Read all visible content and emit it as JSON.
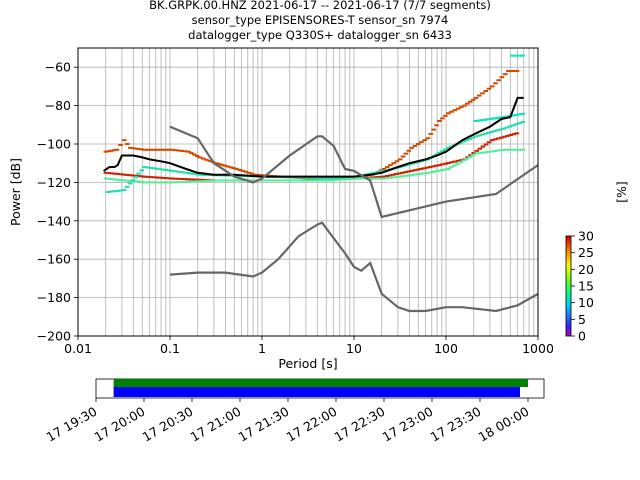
{
  "title": {
    "line1": "BK.GRPK.00.HNZ   2021-06-17 -- 2021-06-17  (7/7 segments)",
    "line2": "sensor_type EPISENSORES-T sensor_sn 7974",
    "line3": "datalogger_type Q330S+ datalogger_sn 6433"
  },
  "chart_data": [
    {
      "type": "heatmap",
      "title": "BK.GRPK.00.HNZ   2021-06-17 -- 2021-06-17  (7/7 segments)",
      "xlabel": "Period [s]",
      "ylabel": "Power [dB]",
      "xscale": "log",
      "xlim": [
        0.01,
        1000
      ],
      "ylim": [
        -200,
        -50
      ],
      "xticks": [
        0.01,
        0.1,
        1,
        10,
        100,
        1000
      ],
      "xtick_labels": [
        "0.01",
        "0.1",
        "1",
        "10",
        "100",
        "1000"
      ],
      "yticks": [
        -200,
        -180,
        -160,
        -140,
        -120,
        -100,
        -80,
        -60
      ],
      "ytick_labels": [
        "−200",
        "−180",
        "−160",
        "−140",
        "−120",
        "−100",
        "−80",
        "−60"
      ],
      "grid": true,
      "colorbar": {
        "label": "[%]",
        "range": [
          0,
          30
        ],
        "ticks": [
          0,
          5,
          10,
          15,
          20,
          25,
          30
        ],
        "tick_labels": [
          "0",
          "5",
          "10",
          "15",
          "20",
          "25",
          "30"
        ]
      },
      "psd_tracks": [
        {
          "color": "#d24a00",
          "points": [
            [
              0.019,
              -104
            ],
            [
              0.025,
              -103
            ],
            [
              0.03,
              -98
            ],
            [
              0.035,
              -102
            ],
            [
              0.05,
              -103
            ],
            [
              0.1,
              -103
            ],
            [
              0.15,
              -104
            ],
            [
              0.2,
              -107
            ],
            [
              0.3,
              -110
            ],
            [
              0.5,
              -113
            ],
            [
              0.8,
              -116
            ],
            [
              1.5,
              -117
            ],
            [
              3,
              -118
            ],
            [
              6,
              -118
            ],
            [
              10,
              -117
            ],
            [
              15,
              -116
            ],
            [
              20,
              -113
            ],
            [
              30,
              -108
            ],
            [
              40,
              -102
            ],
            [
              60,
              -97
            ],
            [
              80,
              -88
            ],
            [
              100,
              -84
            ],
            [
              150,
              -80
            ],
            [
              200,
              -76
            ],
            [
              300,
              -70
            ],
            [
              450,
              -62
            ],
            [
              600,
              -62
            ]
          ]
        },
        {
          "color": "#cc2200",
          "points": [
            [
              0.019,
              -115
            ],
            [
              0.05,
              -117
            ],
            [
              0.1,
              -118
            ],
            [
              0.3,
              -119
            ],
            [
              1,
              -119
            ],
            [
              3,
              -119
            ],
            [
              10,
              -118
            ],
            [
              20,
              -117
            ],
            [
              40,
              -114
            ],
            [
              80,
              -111
            ],
            [
              150,
              -108
            ],
            [
              300,
              -98
            ],
            [
              600,
              -94
            ]
          ]
        },
        {
          "color": "#55ee99",
          "points": [
            [
              0.019,
              -118
            ],
            [
              0.05,
              -120
            ],
            [
              0.1,
              -120
            ],
            [
              0.3,
              -119
            ],
            [
              1,
              -119
            ],
            [
              5,
              -119
            ],
            [
              10,
              -118
            ],
            [
              20,
              -118
            ],
            [
              30,
              -117
            ],
            [
              60,
              -115
            ],
            [
              100,
              -113
            ],
            [
              200,
              -105
            ],
            [
              400,
              -103
            ],
            [
              700,
              -103
            ]
          ]
        },
        {
          "color": "#22ddaa",
          "points": [
            [
              0.02,
              -125
            ],
            [
              0.03,
              -124
            ],
            [
              0.05,
              -112
            ],
            [
              0.1,
              -114
            ],
            [
              0.2,
              -116
            ],
            [
              1,
              -117
            ],
            [
              5,
              -118
            ],
            [
              10,
              -117
            ],
            [
              20,
              -114
            ],
            [
              30,
              -112
            ],
            [
              60,
              -108
            ],
            [
              100,
              -102
            ],
            [
              200,
              -96
            ],
            [
              400,
              -92
            ],
            [
              700,
              -88
            ]
          ]
        },
        {
          "color": "#00e5c0",
          "points": [
            [
              200,
              -88
            ],
            [
              400,
              -86
            ],
            [
              700,
              -84
            ]
          ]
        },
        {
          "color": "#00f0b0",
          "points": [
            [
              500,
              -54
            ],
            [
              700,
              -54
            ]
          ]
        }
      ],
      "series": [
        {
          "name": "",
          "color": "#000000",
          "points": [
            [
              0.019,
              -114
            ],
            [
              0.022,
              -112
            ],
            [
              0.025,
              -112
            ],
            [
              0.027,
              -111
            ],
            [
              0.03,
              -106
            ],
            [
              0.04,
              -106
            ],
            [
              0.05,
              -107
            ],
            [
              0.06,
              -108
            ],
            [
              0.08,
              -109
            ],
            [
              0.1,
              -110
            ],
            [
              0.15,
              -113
            ],
            [
              0.2,
              -115
            ],
            [
              0.3,
              -116
            ],
            [
              0.5,
              -116
            ],
            [
              1,
              -117
            ],
            [
              2,
              -117
            ],
            [
              5,
              -117
            ],
            [
              10,
              -117
            ],
            [
              15,
              -116
            ],
            [
              20,
              -115
            ],
            [
              30,
              -112
            ],
            [
              40,
              -110
            ],
            [
              60,
              -108
            ],
            [
              80,
              -106
            ],
            [
              100,
              -104
            ],
            [
              150,
              -98
            ],
            [
              200,
              -95
            ],
            [
              300,
              -91
            ],
            [
              400,
              -87
            ],
            [
              500,
              -86
            ],
            [
              600,
              -76
            ],
            [
              700,
              -76
            ]
          ]
        },
        {
          "name": "",
          "color": "#666666",
          "points": [
            [
              0.1,
              -91
            ],
            [
              0.2,
              -97
            ],
            [
              0.3,
              -110
            ],
            [
              0.5,
              -117
            ],
            [
              0.8,
              -120
            ],
            [
              1,
              -118
            ],
            [
              2,
              -106
            ],
            [
              4,
              -96
            ],
            [
              4.5,
              -96
            ],
            [
              6,
              -101
            ],
            [
              8,
              -113
            ],
            [
              10,
              -114
            ],
            [
              15,
              -119
            ],
            [
              20,
              -138
            ],
            [
              100,
              -130
            ],
            [
              350,
              -126
            ],
            [
              1000,
              -111
            ]
          ]
        },
        {
          "name": "",
          "color": "#666666",
          "points": [
            [
              0.1,
              -168
            ],
            [
              0.2,
              -167
            ],
            [
              0.4,
              -167
            ],
            [
              0.8,
              -169
            ],
            [
              1,
              -167
            ],
            [
              1.5,
              -160
            ],
            [
              2.5,
              -148
            ],
            [
              4,
              -142
            ],
            [
              4.5,
              -141
            ],
            [
              6,
              -149
            ],
            [
              8,
              -157
            ],
            [
              10,
              -164
            ],
            [
              12,
              -166
            ],
            [
              15,
              -162
            ],
            [
              20,
              -178
            ],
            [
              30,
              -185
            ],
            [
              40,
              -187
            ],
            [
              60,
              -187
            ],
            [
              100,
              -185
            ],
            [
              150,
              -185
            ],
            [
              350,
              -187
            ],
            [
              600,
              -184
            ],
            [
              1000,
              -178
            ]
          ]
        }
      ]
    },
    {
      "type": "timeline",
      "xticks": [
        "17 19:30",
        "17 20:00",
        "17 20:30",
        "17 21:00",
        "17 21:30",
        "17 22:00",
        "17 22:30",
        "17 23:00",
        "17 23:30",
        "18 00:00"
      ],
      "bars": [
        {
          "color": "#008000",
          "start": "17 19:41",
          "end": "18 00:00"
        },
        {
          "color": "#0000ff",
          "start": "17 19:41",
          "end": "17 23:55"
        }
      ]
    }
  ]
}
